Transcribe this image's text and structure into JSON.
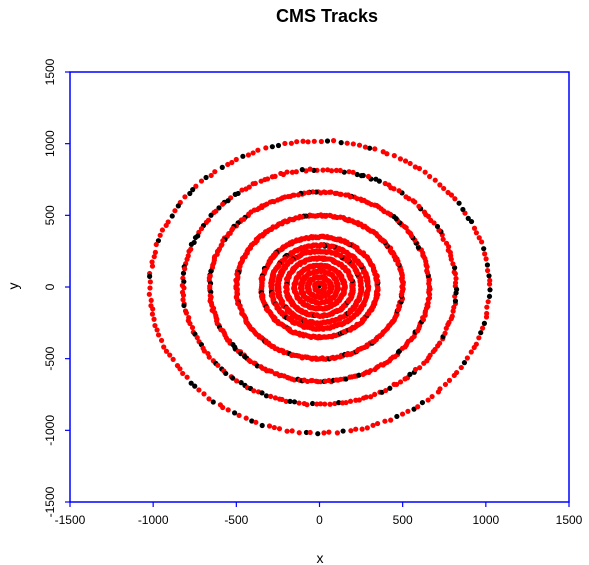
{
  "chart_data": {
    "type": "scatter",
    "title": "CMS Tracks",
    "xlabel": "x",
    "ylabel": "y",
    "xlim": [
      -1500,
      1500
    ],
    "ylim": [
      -1500,
      1500
    ],
    "x_ticks": [
      "-1500",
      "-1000",
      "-500",
      "0",
      "500",
      "1000",
      "1500"
    ],
    "y_ticks": [
      "-1500",
      "-1000",
      "-500",
      "0",
      "500",
      "1000",
      "1500"
    ],
    "grid": false,
    "frame_color": "#0000ff",
    "rings": [
      {
        "radius": 30,
        "points": 40,
        "black_fraction": 0.0
      },
      {
        "radius": 70,
        "points": 90,
        "black_fraction": 0.0
      },
      {
        "radius": 110,
        "points": 120,
        "black_fraction": 0.0
      },
      {
        "radius": 150,
        "points": 160,
        "black_fraction": 0.0
      },
      {
        "radius": 200,
        "points": 200,
        "black_fraction": 0.02
      },
      {
        "radius": 250,
        "points": 240,
        "black_fraction": 0.03
      },
      {
        "radius": 290,
        "points": 260,
        "black_fraction": 0.03
      },
      {
        "radius": 350,
        "points": 280,
        "black_fraction": 0.05
      },
      {
        "radius": 500,
        "points": 300,
        "black_fraction": 0.06
      },
      {
        "radius": 660,
        "points": 260,
        "black_fraction": 0.15
      },
      {
        "radius": 820,
        "points": 200,
        "black_fraction": 0.22
      },
      {
        "radius": 1020,
        "points": 170,
        "black_fraction": 0.22
      }
    ],
    "point_colors": {
      "primary": "#ff0000",
      "secondary": "#000000"
    }
  }
}
